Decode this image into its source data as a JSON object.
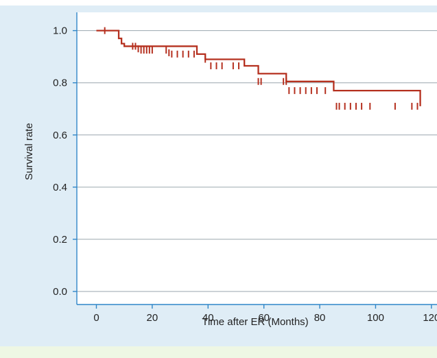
{
  "chart_data": {
    "type": "line",
    "title": "",
    "xlabel": "Time after ER (Months)",
    "ylabel": "Survival rate",
    "xlim": [
      -7,
      122
    ],
    "ylim": [
      -0.05,
      1.07
    ],
    "xticks": [
      "0",
      "20",
      "40",
      "60",
      "80",
      "100",
      "120"
    ],
    "yticks": [
      "0.0",
      "0.2",
      "0.4",
      "0.6",
      "0.8",
      "1.0"
    ],
    "grid": "horizontal",
    "colors": {
      "line": "#b5301f",
      "axis": "#2f86c8",
      "grid": "#9aa6ae",
      "panel": "#dfedf6",
      "footer": "#eef7e4"
    },
    "series": [
      {
        "x": [
          0,
          8,
          9,
          10,
          36,
          39,
          53,
          58,
          68,
          85,
          116
        ],
        "y": [
          1.0,
          0.97,
          0.95,
          0.94,
          0.91,
          0.89,
          0.865,
          0.835,
          0.805,
          0.77,
          0.71
        ],
        "censored": [
          [
            3,
            1.0
          ],
          [
            13,
            0.94
          ],
          [
            14,
            0.94
          ],
          [
            15,
            0.93
          ],
          [
            16,
            0.925
          ],
          [
            17,
            0.925
          ],
          [
            18,
            0.925
          ],
          [
            19,
            0.925
          ],
          [
            20,
            0.925
          ],
          [
            25,
            0.925
          ],
          [
            26,
            0.915
          ],
          [
            27,
            0.91
          ],
          [
            29,
            0.91
          ],
          [
            31,
            0.91
          ],
          [
            33,
            0.91
          ],
          [
            35,
            0.91
          ],
          [
            39,
            0.89
          ],
          [
            41,
            0.865
          ],
          [
            43,
            0.865
          ],
          [
            45,
            0.865
          ],
          [
            49,
            0.865
          ],
          [
            51,
            0.865
          ],
          [
            58,
            0.805
          ],
          [
            59,
            0.805
          ],
          [
            67,
            0.805
          ],
          [
            68,
            0.805
          ],
          [
            69,
            0.77
          ],
          [
            71,
            0.77
          ],
          [
            73,
            0.77
          ],
          [
            75,
            0.77
          ],
          [
            77,
            0.77
          ],
          [
            79,
            0.77
          ],
          [
            82,
            0.77
          ],
          [
            86,
            0.71
          ],
          [
            87,
            0.71
          ],
          [
            89,
            0.71
          ],
          [
            91,
            0.71
          ],
          [
            93,
            0.71
          ],
          [
            95,
            0.71
          ],
          [
            98,
            0.71
          ],
          [
            107,
            0.71
          ],
          [
            113,
            0.71
          ],
          [
            115,
            0.71
          ]
        ]
      }
    ]
  }
}
